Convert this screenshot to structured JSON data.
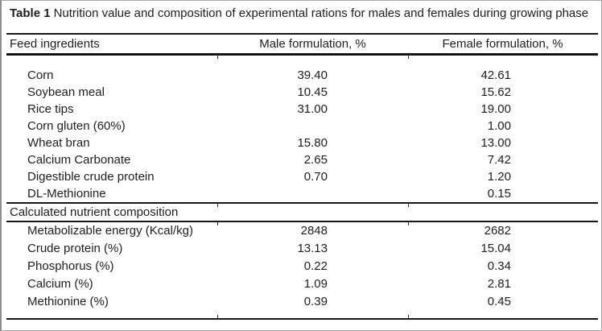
{
  "caption": {
    "label": "Table 1",
    "text": "Nutrition value and composition of experimental rations for males and females during growing phase"
  },
  "columns": [
    "Feed ingredients",
    "Male formulation, %",
    "Female formulation, %"
  ],
  "sections": [
    {
      "rows": [
        {
          "label": "Corn",
          "male": "39.40",
          "female": "42.61"
        },
        {
          "label": "Soybean meal",
          "male": "10.45",
          "female": "15.62"
        },
        {
          "label": "Rice tips",
          "male": "31.00",
          "female": "19.00"
        },
        {
          "label": "Corn gluten (60%)",
          "male": "",
          "female": "1.00"
        },
        {
          "label": "Wheat bran",
          "male": "15.80",
          "female": "13.00"
        },
        {
          "label": "Calcium Carbonate",
          "male": "2.65",
          "female": "7.42"
        },
        {
          "label": "Digestible crude protein",
          "male": "0.70",
          "female": "1.20"
        },
        {
          "label": "DL-Methionine",
          "male": "",
          "female": "0.15"
        }
      ]
    },
    {
      "header": "Calculated nutrient composition",
      "rows": [
        {
          "label": "Metabolizable energy (Kcal/kg)",
          "male": "2848",
          "female": "2682"
        },
        {
          "label": "Crude protein (%)",
          "male": "13.13",
          "female": "15.04"
        },
        {
          "label": "Phosphorus (%)",
          "male": "0.22",
          "female": "0.34"
        },
        {
          "label": "Calcium (%)",
          "male": "1.09",
          "female": "2.81"
        },
        {
          "label": "Methionine (%)",
          "male": "0.39",
          "female": "0.45"
        }
      ]
    }
  ],
  "colors": {
    "text": "#1e1e1e",
    "rule": "#161616",
    "frame": "#a6a6a6"
  }
}
